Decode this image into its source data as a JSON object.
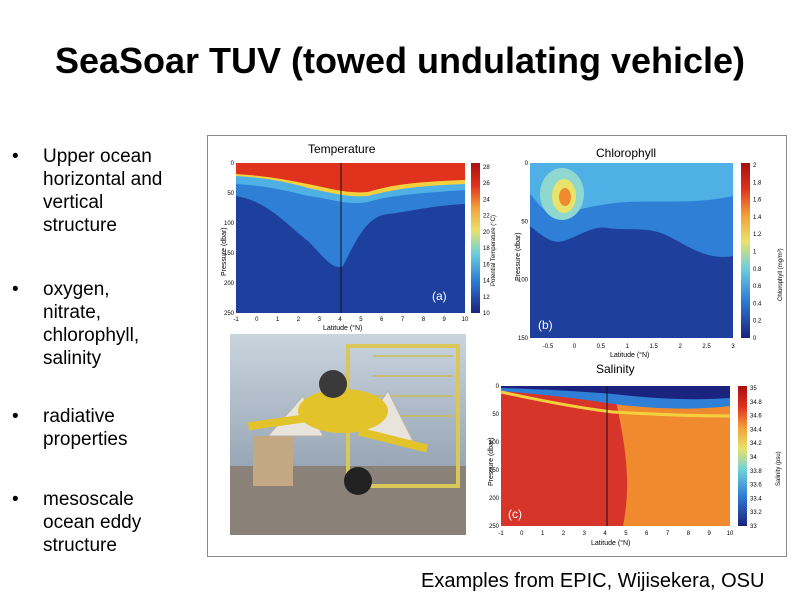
{
  "slide": {
    "title": "SeaSoar TUV (towed undulating vehicle)",
    "bullets": [
      "Upper ocean horizontal and vertical structure",
      " oxygen, nitrate, chlorophyll, salinity",
      " radiative properties",
      " mesoscale ocean eddy structure"
    ],
    "bullet_lines": [
      [
        "Upper ocean",
        "horizontal and",
        "vertical",
        "structure"
      ],
      [
        " oxygen,",
        "nitrate,",
        "chlorophyll,",
        "salinity"
      ],
      [
        " radiative",
        "properties"
      ],
      [
        " mesoscale",
        "ocean eddy",
        "structure"
      ]
    ],
    "bullet_symbol": "•",
    "caption": "Examples from EPIC, Wijisekera, OSU"
  },
  "photo": {
    "description_icon": "seasoar-vehicle-photo"
  },
  "panels": {
    "temperature": {
      "title": "Temperature",
      "letter": "(a)",
      "ylabel": "Pressure (dbar)",
      "xlabel": "Latitude (°N)",
      "cbar_label": "Potential Temperature (°C)",
      "xticks": [
        "-1",
        "0",
        "1",
        "2",
        "3",
        "4",
        "5",
        "6",
        "7",
        "8",
        "9",
        "10"
      ],
      "yticks": [
        "0",
        "50",
        "100",
        "150",
        "200",
        "250"
      ],
      "cticks": [
        "28",
        "26",
        "24",
        "22",
        "20",
        "18",
        "16",
        "14",
        "12",
        "10"
      ]
    },
    "chlorophyll": {
      "title": "Chlorophyll",
      "letter": "(b)",
      "ylabel": "Pressure (dbar)",
      "xlabel": "Latitude (°N)",
      "cbar_label": "Chlorophyll (mg/m³)",
      "xticks": [
        "-0.5",
        "0",
        "0.5",
        "1",
        "1.5",
        "2",
        "2.5",
        "3"
      ],
      "yticks": [
        "0",
        "50",
        "100",
        "150"
      ],
      "cticks": [
        "2",
        "1.8",
        "1.6",
        "1.4",
        "1.2",
        "1",
        "0.8",
        "0.6",
        "0.4",
        "0.2",
        "0"
      ]
    },
    "salinity": {
      "title": "Salinity",
      "letter": "(c)",
      "ylabel": "Pressure (dbar)",
      "xlabel": "Latitude (°N)",
      "cbar_label": "Salinity (psu)",
      "xticks": [
        "-1",
        "0",
        "1",
        "2",
        "3",
        "4",
        "5",
        "6",
        "7",
        "8",
        "9",
        "10"
      ],
      "yticks": [
        "0",
        "50",
        "100",
        "150",
        "200",
        "250"
      ],
      "cticks": [
        "35",
        "34.8",
        "34.6",
        "34.4",
        "34.2",
        "34",
        "33.8",
        "33.6",
        "33.4",
        "33.2",
        "33"
      ]
    }
  },
  "colors": {
    "colormap": [
      "#1a237e",
      "#1e4fb4",
      "#2f7fd6",
      "#4fb0e6",
      "#8fd8d0",
      "#d8ec7a",
      "#f4d03f",
      "#f08a2e",
      "#d92b1c",
      "#a80f10"
    ]
  }
}
